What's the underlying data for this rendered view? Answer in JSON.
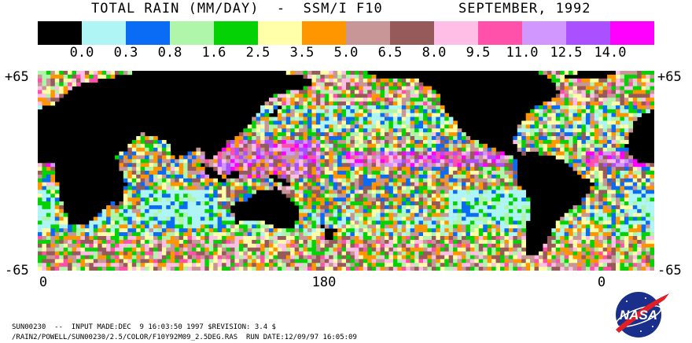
{
  "header": {
    "title": "TOTAL RAIN (MM/DAY)  -  SSM/I F10",
    "date": "SEPTEMBER, 1992"
  },
  "legend": {
    "colors": [
      "#000000",
      "#aff5f5",
      "#0a6cf5",
      "#aff5aa",
      "#05d205",
      "#ffffaa",
      "#ff9600",
      "#c89696",
      "#965a5a",
      "#ffbee6",
      "#ff50aa",
      "#d296ff",
      "#aa50ff",
      "#ff00ff"
    ],
    "tick_labels": [
      "0.0",
      "0.3",
      "0.8",
      "1.6",
      "2.5",
      "3.5",
      "5.0",
      "6.5",
      "8.0",
      "9.5",
      "11.0",
      "12.5",
      "14.0"
    ]
  },
  "map": {
    "lat_top": "+65",
    "lat_bottom": "-65",
    "lon_labels": [
      "0",
      "180",
      "0"
    ]
  },
  "footer": {
    "line1": "SUN00230  --  INPUT MADE:DEC  9 16:03:50 1997 $REVISION: 3.4 $",
    "line2": "/RAIN2/POWELL/SUN00230/2.5/COLOR/F10Y92M09_2.5DEG.RAS  RUN DATE:12/09/97 16:05:09"
  },
  "logo": {
    "text": "NASA",
    "icon": "nasa-meatball-icon"
  }
}
